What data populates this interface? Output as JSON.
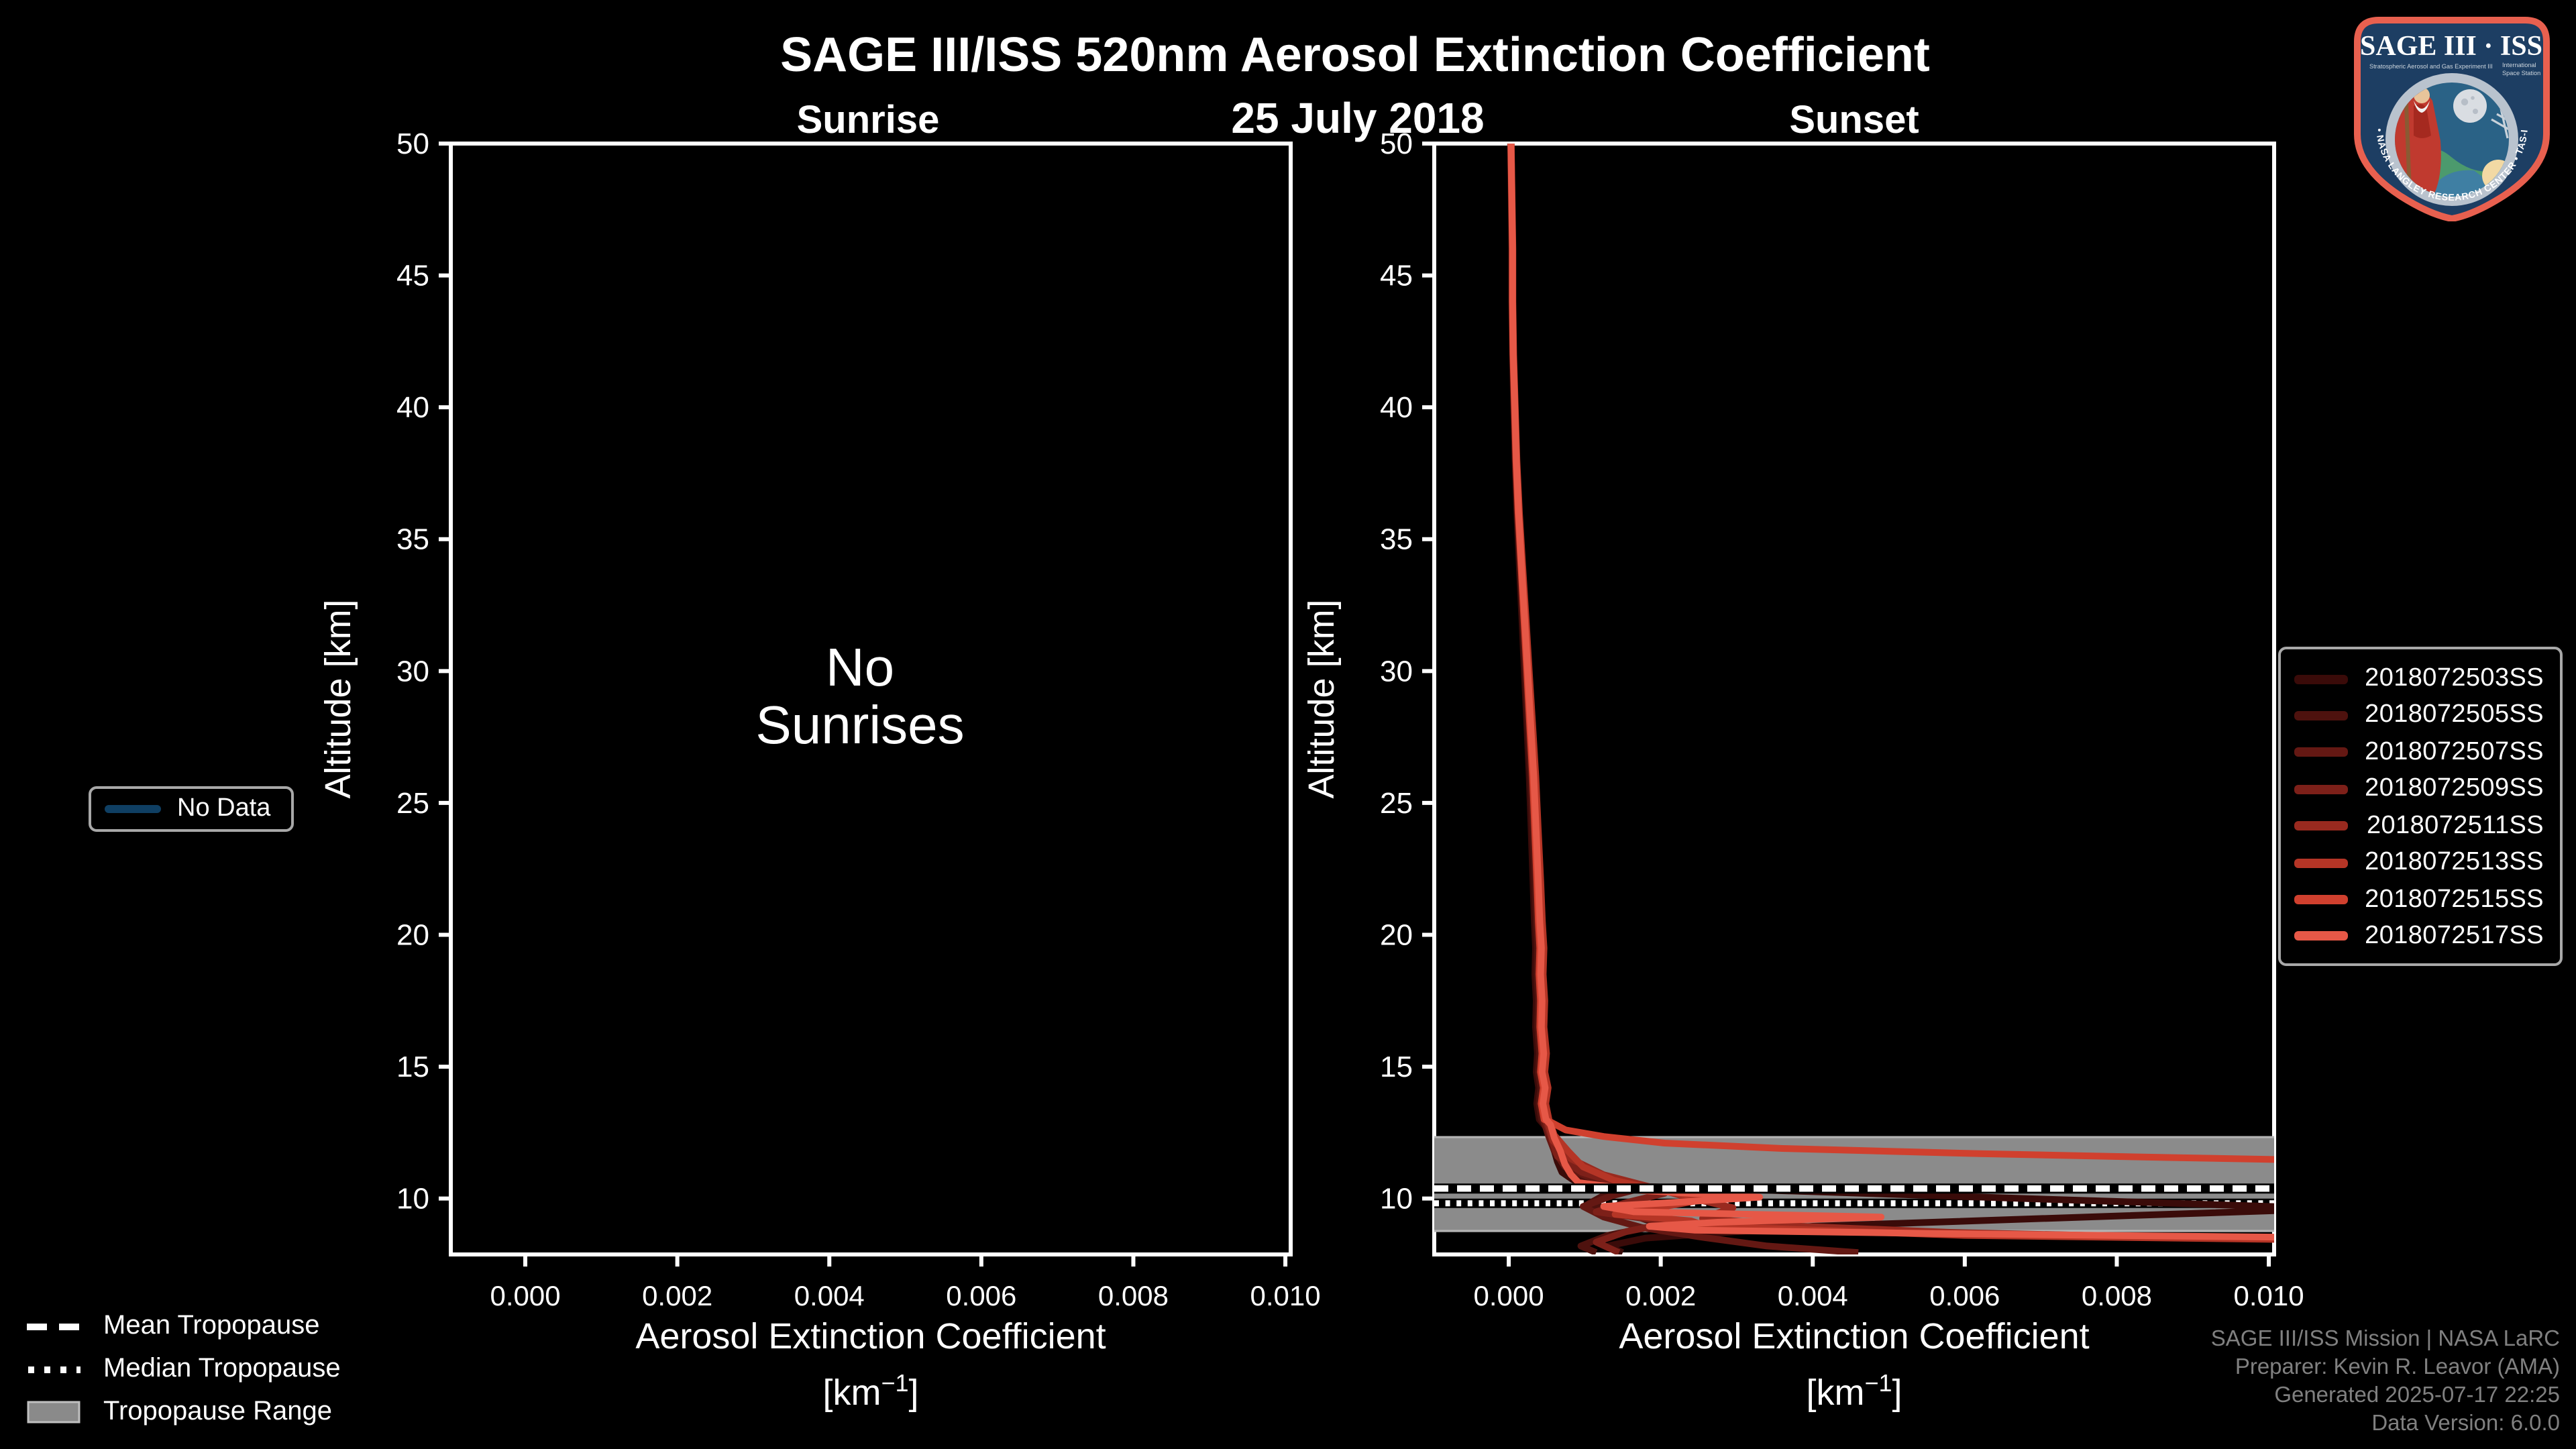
{
  "title": "SAGE III/ISS 520nm Aerosol Extinction Coefficient",
  "date_subtitle": "25 July 2018",
  "left_panel": {
    "title": "Sunrise",
    "empty_message_line1": "No",
    "empty_message_line2": "Sunrises",
    "no_data_legend": {
      "label": "No Data",
      "line_color": "#0f3f63"
    }
  },
  "right_panel": {
    "title": "Sunset"
  },
  "axes": {
    "y_label": "Altitude [km]",
    "x_label_line1": "Aerosol Extinction Coefficient",
    "x_label_unit_prefix": "[km",
    "x_label_unit_exponent": "−1",
    "x_label_unit_suffix": "]",
    "x_tick_labels": [
      "0.000",
      "0.002",
      "0.004",
      "0.006",
      "0.008",
      "0.010"
    ],
    "y_tick_labels": [
      "50",
      "45",
      "40",
      "35",
      "30",
      "25",
      "20",
      "15",
      "10"
    ]
  },
  "bottom_legend": [
    {
      "label": "Mean Tropopause",
      "style": "dashed"
    },
    {
      "label": "Median Tropopause",
      "style": "dotted"
    },
    {
      "label": "Tropopause Range",
      "style": "band"
    }
  ],
  "credits_lines": [
    "SAGE III/ISS Mission | NASA LaRC",
    "Preparer: Kevin R. Leavor (AMA)",
    "Generated 2025-07-17 22:25",
    "Data Version: 6.0.0"
  ],
  "logo": {
    "title": "SAGE III · ISS",
    "subtitle_left": "Stratospheric Aerosol and Gas Experiment III",
    "subtitle_right_line1": "International",
    "subtitle_right_line2": "Space Station",
    "ring_text": "BALL • NASA LANGLEY RESEARCH CENTER • TAS-I • ESA",
    "colors": {
      "border": "#e8604f",
      "shield": "#1d3e63",
      "ring": "#b9c3ce",
      "sky": "#2a6286"
    }
  },
  "chart_data": {
    "type": "line",
    "title": "SAGE III/ISS 520nm Aerosol Extinction Coefficient",
    "date": "25 July 2018",
    "panels": [
      "Sunrise",
      "Sunset"
    ],
    "xlabel": "Aerosol Extinction Coefficient [km^-1]",
    "ylabel": "Altitude [km]",
    "x_range": [
      -0.00098,
      0.01007
    ],
    "y_range": [
      7.88,
      50.0
    ],
    "x_ticks": [
      0,
      0.002,
      0.004,
      0.006,
      0.008,
      0.01
    ],
    "y_ticks": [
      50,
      45,
      40,
      35,
      30,
      25,
      20,
      15,
      10
    ],
    "grid": false,
    "sunrise_series": [],
    "sunrise_note": "No Sunrises",
    "tropopause": {
      "mean_km": 10.38,
      "median_km": 9.82,
      "range_km": [
        8.77,
        12.33
      ],
      "band_color": "#8b8b8b",
      "band_edge_color": "#b5b5b5"
    },
    "upper_profile": [
      [
        3e-05,
        50
      ],
      [
        4e-05,
        48
      ],
      [
        5e-05,
        46
      ],
      [
        5e-05,
        44
      ],
      [
        6e-05,
        42
      ],
      [
        8e-05,
        40
      ],
      [
        0.0001,
        38
      ],
      [
        0.00013,
        36
      ],
      [
        0.00017,
        34
      ],
      [
        0.00021,
        32
      ],
      [
        0.00025,
        30
      ],
      [
        0.00029,
        28
      ],
      [
        0.00033,
        26
      ],
      [
        0.00036,
        24
      ],
      [
        0.00039,
        22
      ],
      [
        0.00041,
        20.5
      ],
      [
        0.00043,
        19.5
      ],
      [
        0.00042,
        18.5
      ],
      [
        0.00044,
        17.5
      ],
      [
        0.00043,
        16.5
      ],
      [
        0.00046,
        15.5
      ],
      [
        0.00044,
        14.8
      ],
      [
        0.00048,
        14.2
      ],
      [
        0.00045,
        13.6
      ],
      [
        0.00049,
        13.0
      ]
    ],
    "series": [
      {
        "name": "2018072503SS",
        "color": "#3a0b09",
        "scale": 0.82,
        "lower": [
          [
            0.00052,
            12.6
          ],
          [
            0.00058,
            12.0
          ],
          [
            0.00064,
            11.4
          ],
          [
            0.0007,
            11.0
          ],
          [
            0.00085,
            10.7
          ],
          [
            0.0012,
            10.5
          ],
          [
            0.003,
            10.35
          ],
          [
            0.0109,
            9.62
          ],
          [
            0.004,
            8.95
          ],
          [
            0.0018,
            8.5
          ],
          [
            0.0013,
            8.2
          ],
          [
            0.0015,
            7.95
          ]
        ]
      },
      {
        "name": "2018072505SS",
        "color": "#4e120e",
        "scale": 0.88,
        "lower": [
          [
            0.00054,
            12.5
          ],
          [
            0.0006,
            12.0
          ],
          [
            0.00068,
            11.5
          ],
          [
            0.0008,
            11.0
          ],
          [
            0.001,
            10.6
          ],
          [
            0.0013,
            10.2
          ],
          [
            0.00105,
            9.8
          ],
          [
            0.0016,
            9.4
          ],
          [
            0.002,
            9.0
          ],
          [
            0.0013,
            8.6
          ],
          [
            0.00095,
            8.2
          ],
          [
            0.00115,
            7.95
          ]
        ]
      },
      {
        "name": "2018072507SS",
        "color": "#641813",
        "scale": 0.93,
        "lower": [
          [
            0.00052,
            12.4
          ],
          [
            0.0006,
            11.8
          ],
          [
            0.00074,
            11.2
          ],
          [
            0.00115,
            10.7
          ],
          [
            0.00175,
            10.4
          ],
          [
            0.00135,
            10.1
          ],
          [
            0.00098,
            9.7
          ],
          [
            0.00125,
            9.3
          ],
          [
            0.00175,
            8.9
          ],
          [
            0.0025,
            8.55
          ],
          [
            0.0034,
            8.2
          ],
          [
            0.0046,
            7.95
          ]
        ]
      },
      {
        "name": "2018072509SS",
        "color": "#7d2019",
        "scale": 0.98,
        "lower": [
          [
            0.00056,
            12.3
          ],
          [
            0.00064,
            11.6
          ],
          [
            0.00096,
            11.0
          ],
          [
            0.00145,
            10.55
          ],
          [
            0.00205,
            10.2
          ],
          [
            0.00155,
            9.85
          ],
          [
            0.00115,
            9.5
          ],
          [
            0.00215,
            9.1
          ],
          [
            0.00155,
            8.75
          ],
          [
            0.00115,
            8.35
          ],
          [
            0.00145,
            7.95
          ]
        ]
      },
      {
        "name": "2018072511SS",
        "color": "#992a1f",
        "scale": 1.03,
        "lower": [
          [
            0.00058,
            12.2
          ],
          [
            0.00082,
            11.5
          ],
          [
            0.00125,
            10.9
          ],
          [
            0.00185,
            10.45
          ],
          [
            0.00235,
            10.05
          ],
          [
            0.00295,
            9.65
          ],
          [
            0.00255,
            9.25
          ],
          [
            0.00385,
            8.95
          ],
          [
            0.0058,
            8.72
          ],
          [
            0.0084,
            8.55
          ],
          [
            0.0107,
            8.45
          ]
        ]
      },
      {
        "name": "2018072513SS",
        "color": "#b53526",
        "scale": 1.08,
        "lower": [
          [
            0.0006,
            12.4
          ],
          [
            0.00078,
            11.8
          ],
          [
            0.00098,
            11.2
          ],
          [
            0.00138,
            10.7
          ],
          [
            0.00198,
            10.3
          ],
          [
            0.00265,
            10.0
          ],
          [
            0.00205,
            9.7
          ],
          [
            0.0014,
            9.4
          ],
          [
            0.0024,
            9.15
          ],
          [
            0.0026,
            8.95
          ],
          [
            0.006,
            8.6
          ],
          [
            0.0101,
            8.45
          ],
          [
            0.012,
            8.35
          ]
        ]
      },
      {
        "name": "2018072515SS",
        "color": "#d0402e",
        "scale": 0.95,
        "lower": [
          [
            0.00055,
            12.9
          ],
          [
            0.00075,
            12.6
          ],
          [
            0.00125,
            12.35
          ],
          [
            0.00205,
            12.1
          ],
          [
            0.0036,
            11.9
          ],
          [
            0.0062,
            11.7
          ],
          [
            0.0088,
            11.55
          ],
          [
            0.0107,
            11.45
          ]
        ]
      },
      {
        "name": "2018072517SS",
        "color": "#e65847",
        "scale": 1.0,
        "lower": [
          [
            0.00055,
            12.8
          ],
          [
            0.0006,
            12.3
          ],
          [
            0.00068,
            11.8
          ],
          [
            0.00074,
            11.3
          ],
          [
            0.00082,
            10.9
          ],
          [
            0.00092,
            10.6
          ],
          [
            0.00175,
            10.3
          ],
          [
            0.0033,
            10.05
          ],
          [
            0.00215,
            9.85
          ],
          [
            0.00125,
            9.7
          ],
          [
            0.00165,
            9.5
          ],
          [
            0.0049,
            9.3
          ],
          [
            0.00275,
            9.1
          ],
          [
            0.00185,
            8.95
          ],
          [
            0.00245,
            8.8
          ],
          [
            0.0055,
            8.68
          ],
          [
            0.0085,
            8.58
          ],
          [
            0.0107,
            8.52
          ]
        ]
      }
    ]
  }
}
